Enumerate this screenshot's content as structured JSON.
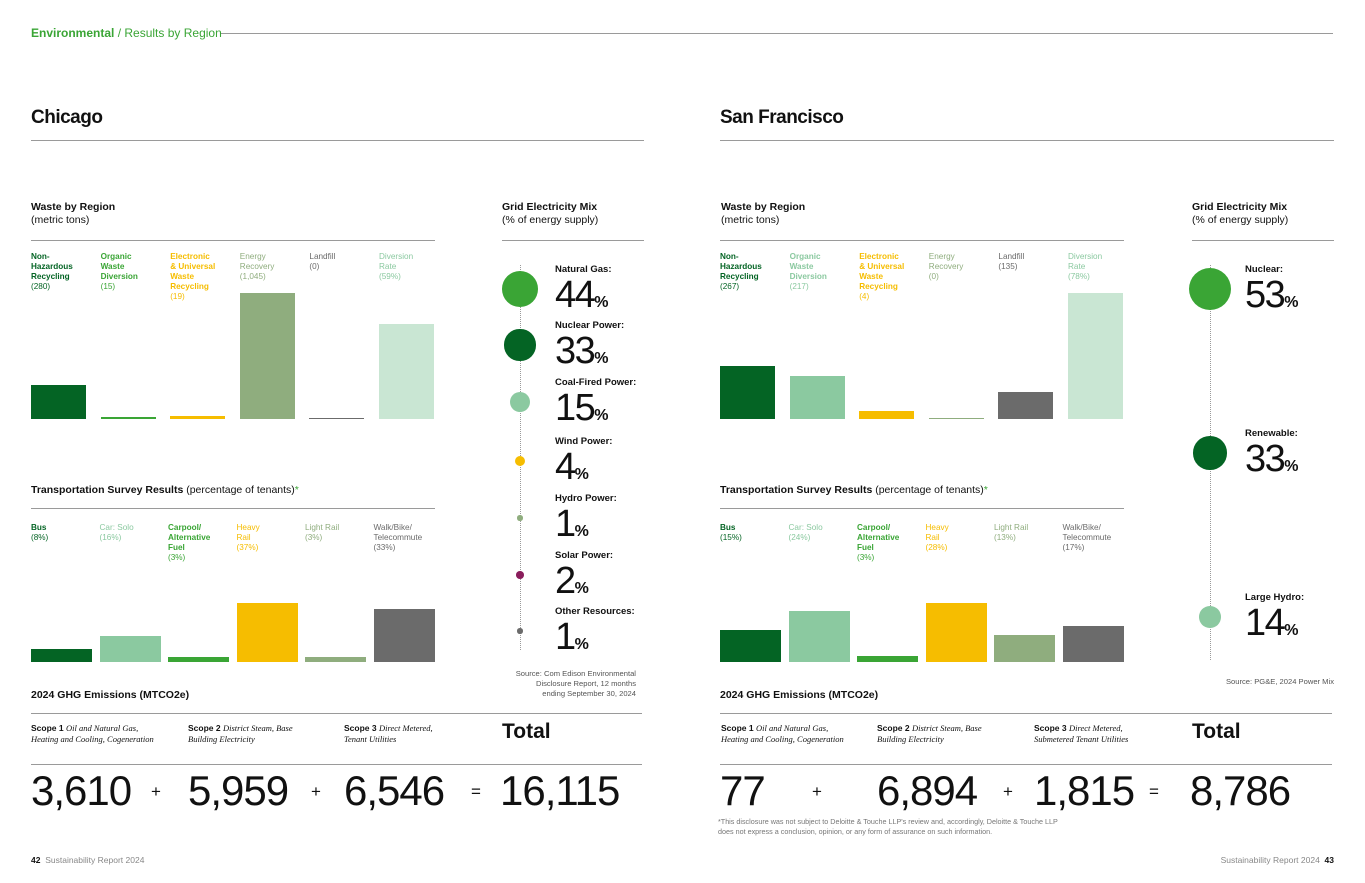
{
  "header": {
    "section": "Environmental",
    "subsection": "/ Results by Region"
  },
  "colors": {
    "dark_green": "#046424",
    "light_green": "#8bc9a0",
    "mid_green": "#3aa535",
    "yellow": "#f6bd00",
    "sage": "#8fad7e",
    "gray": "#6b6b6b",
    "pale_green": "#c9e6d3",
    "bright_green": "#3aa535",
    "magenta": "#8a1d5c"
  },
  "chicago": {
    "title": "Chicago",
    "waste": {
      "title": "Waste by Region",
      "subtitle": "(metric tons)",
      "chart_data": {
        "type": "bar",
        "categories": [
          "Non-Hazardous Recycling",
          "Organic Waste Diversion",
          "Electronic & Universal Waste Recycling",
          "Energy Recovery",
          "Landfill",
          "Diversion Rate"
        ],
        "values": [
          280,
          15,
          19,
          1045,
          0,
          59
        ],
        "units": [
          "metric tons",
          "metric tons",
          "metric tons",
          "metric tons",
          "metric tons",
          "%"
        ]
      },
      "items": [
        {
          "name": "Non-\nHazardous\nRecycling",
          "value": "(280)",
          "color": "#046424",
          "bar": 0.268
        },
        {
          "name": "Organic\nWaste\nDiversion",
          "value": "(15)",
          "color": "#3aa535",
          "bar": 0.018
        },
        {
          "name": "Electronic\n& Universal\nWaste\nRecycling",
          "value": "(19)",
          "color": "#f6bd00",
          "bar": 0.024
        },
        {
          "name": "Energy\nRecovery",
          "value": "(1,045)",
          "color": "#8fad7e",
          "bar": 1.0
        },
        {
          "name": "Landfill",
          "value": "(0)",
          "color": "#6b6b6b",
          "bar": 0.005
        },
        {
          "name": "Diversion\nRate",
          "value": "(59%)",
          "color": "#c9e6d3",
          "bar": 0.753
        }
      ]
    },
    "transport": {
      "title": "Transportation Survey Results",
      "subtitle": "(percentage of tenants)",
      "asterisk": "*",
      "chart_data": {
        "type": "bar",
        "categories": [
          "Bus",
          "Car: Solo",
          "Carpool/Alternative Fuel",
          "Heavy Rail",
          "Light Rail",
          "Walk/Bike/Telecommute"
        ],
        "values": [
          8,
          16,
          3,
          37,
          3,
          33
        ],
        "units": "%"
      },
      "items": [
        {
          "name": "Bus",
          "value": "(8%)",
          "color": "#046424",
          "pct": 8
        },
        {
          "name": "Car: Solo",
          "value": "(16%)",
          "color": "#8bc9a0",
          "pct": 16
        },
        {
          "name": "Carpool/\nAlternative\nFuel",
          "value": "(3%)",
          "color": "#3aa535",
          "pct": 3
        },
        {
          "name": "Heavy\nRail",
          "value": "(37%)",
          "color": "#f6bd00",
          "pct": 37
        },
        {
          "name": "Light Rail",
          "value": "(3%)",
          "color": "#8fad7e",
          "pct": 3
        },
        {
          "name": "Walk/Bike/\nTelecommute",
          "value": "(33%)",
          "color": "#6b6b6b",
          "pct": 33
        }
      ]
    },
    "grid": {
      "title": "Grid Electricity Mix",
      "subtitle": "(% of energy supply)",
      "items": [
        {
          "label": "Natural Gas:",
          "value": "44",
          "pct": "%",
          "color": "#3aa535",
          "share": 44
        },
        {
          "label": "Nuclear Power:",
          "value": "33",
          "pct": "%",
          "color": "#046424",
          "share": 33
        },
        {
          "label": "Coal-Fired Power:",
          "value": "15",
          "pct": "%",
          "color": "#8bc9a0",
          "share": 15
        },
        {
          "label": "Wind Power:",
          "value": "4",
          "pct": "%",
          "color": "#f6bd00",
          "share": 4
        },
        {
          "label": "Hydro Power:",
          "value": "1",
          "pct": "%",
          "color": "#8fad7e",
          "share": 1
        },
        {
          "label": "Solar Power:",
          "value": "2",
          "pct": "%",
          "color": "#8a1d5c",
          "share": 2
        },
        {
          "label": "Other Resources:",
          "value": "1",
          "pct": "%",
          "color": "#6b6b6b",
          "share": 1
        }
      ],
      "source": "Source: Com Edison Environmental\nDisclosure Report, 12 months\nending September 30, 2024"
    },
    "ghg": {
      "title": "2024 GHG Emissions (MTCO2e)",
      "scope1_label": "Scope 1",
      "scope1_desc": "Oil and Natural Gas,\nHeating and Cooling, Cogeneration",
      "scope2_label": "Scope 2",
      "scope2_desc": "District Steam, Base\nBuilding Electricity",
      "scope3_label": "Scope 3",
      "scope3_desc": "Direct Metered,\nTenant Utilities",
      "total_label": "Total",
      "scope1": "3,610",
      "scope2": "5,959",
      "scope3": "6,546",
      "total": "16,115",
      "plus": "+",
      "equals": "="
    }
  },
  "sf": {
    "title": "San Francisco",
    "waste": {
      "title": "Waste by Region",
      "subtitle": "(metric tons)",
      "chart_data": {
        "type": "bar",
        "categories": [
          "Non-Hazardous Recycling",
          "Organic Waste Diversion",
          "Electronic & Universal Waste Recycling",
          "Energy Recovery",
          "Landfill",
          "Diversion Rate"
        ],
        "values": [
          267,
          217,
          4,
          0,
          135,
          78
        ],
        "units": [
          "metric tons",
          "metric tons",
          "metric tons",
          "metric tons",
          "metric tons",
          "%"
        ]
      },
      "items": [
        {
          "name": "Non-\nHazardous\nRecycling",
          "value": "(267)",
          "color": "#046424",
          "bar": 0.42
        },
        {
          "name": "Organic\nWaste\nDiversion",
          "value": "(217)",
          "color": "#8bc9a0",
          "bar": 0.345
        },
        {
          "name": "Electronic\n& Universal\nWaste\nRecycling",
          "value": "(4)",
          "color": "#f6bd00",
          "bar": 0.06
        },
        {
          "name": "Energy\nRecovery",
          "value": "(0)",
          "color": "#8fad7e",
          "bar": 0.005
        },
        {
          "name": "Landfill",
          "value": "(135)",
          "color": "#6b6b6b",
          "bar": 0.215
        },
        {
          "name": "Diversion\nRate",
          "value": "(78%)",
          "color": "#c9e6d3",
          "bar": 1.0
        }
      ]
    },
    "transport": {
      "title": "Transportation Survey Results",
      "subtitle": "(percentage of tenants)",
      "asterisk": "*",
      "chart_data": {
        "type": "bar",
        "categories": [
          "Bus",
          "Car: Solo",
          "Carpool/Alternative Fuel",
          "Heavy Rail",
          "Light Rail",
          "Walk/Bike/Telecommute"
        ],
        "values": [
          15,
          24,
          3,
          28,
          13,
          17
        ],
        "units": "%"
      },
      "items": [
        {
          "name": "Bus",
          "value": "(15%)",
          "color": "#046424",
          "pct": 15
        },
        {
          "name": "Car: Solo",
          "value": "(24%)",
          "color": "#8bc9a0",
          "pct": 24
        },
        {
          "name": "Carpool/\nAlternative\nFuel",
          "value": "(3%)",
          "color": "#3aa535",
          "pct": 3
        },
        {
          "name": "Heavy\nRail",
          "value": "(28%)",
          "color": "#f6bd00",
          "pct": 28
        },
        {
          "name": "Light Rail",
          "value": "(13%)",
          "color": "#8fad7e",
          "pct": 13
        },
        {
          "name": "Walk/Bike/\nTelecommute",
          "value": "(17%)",
          "color": "#6b6b6b",
          "pct": 17
        }
      ]
    },
    "grid": {
      "title": "Grid Electricity Mix",
      "subtitle": "(% of energy supply)",
      "items": [
        {
          "label": "Nuclear:",
          "value": "53",
          "pct": "%",
          "color": "#3aa535",
          "share": 53
        },
        {
          "label": "Renewable:",
          "value": "33",
          "pct": "%",
          "color": "#046424",
          "share": 33
        },
        {
          "label": "Large Hydro:",
          "value": "14",
          "pct": "%",
          "color": "#8bc9a0",
          "share": 14
        }
      ],
      "source": "Source: PG&E, 2024 Power Mix"
    },
    "ghg": {
      "title": "2024 GHG Emissions (MTCO2e)",
      "scope1_label": "Scope 1",
      "scope1_desc": "Oil and Natural Gas,\nHeating and Cooling, Cogeneration",
      "scope2_label": "Scope 2",
      "scope2_desc": "District Steam, Base\nBuilding Electricity",
      "scope3_label": "Scope 3",
      "scope3_desc": "Direct Metered,\nSubmetered Tenant Utilities",
      "total_label": "Total",
      "scope1": "77",
      "scope2": "6,894",
      "scope3": "1,815",
      "total": "8,786",
      "plus": "+",
      "equals": "="
    },
    "footnote": "*This disclosure was not subject to Deloitte & Touche LLP's review and, accordingly,  Deloitte & Touche LLP\ndoes not express a conclusion, opinion, or any form of assurance on such information."
  },
  "footer": {
    "left_page": "42",
    "left_title": "Sustainability Report 2024",
    "right_page": "43",
    "right_title": "Sustainability Report 2024"
  }
}
